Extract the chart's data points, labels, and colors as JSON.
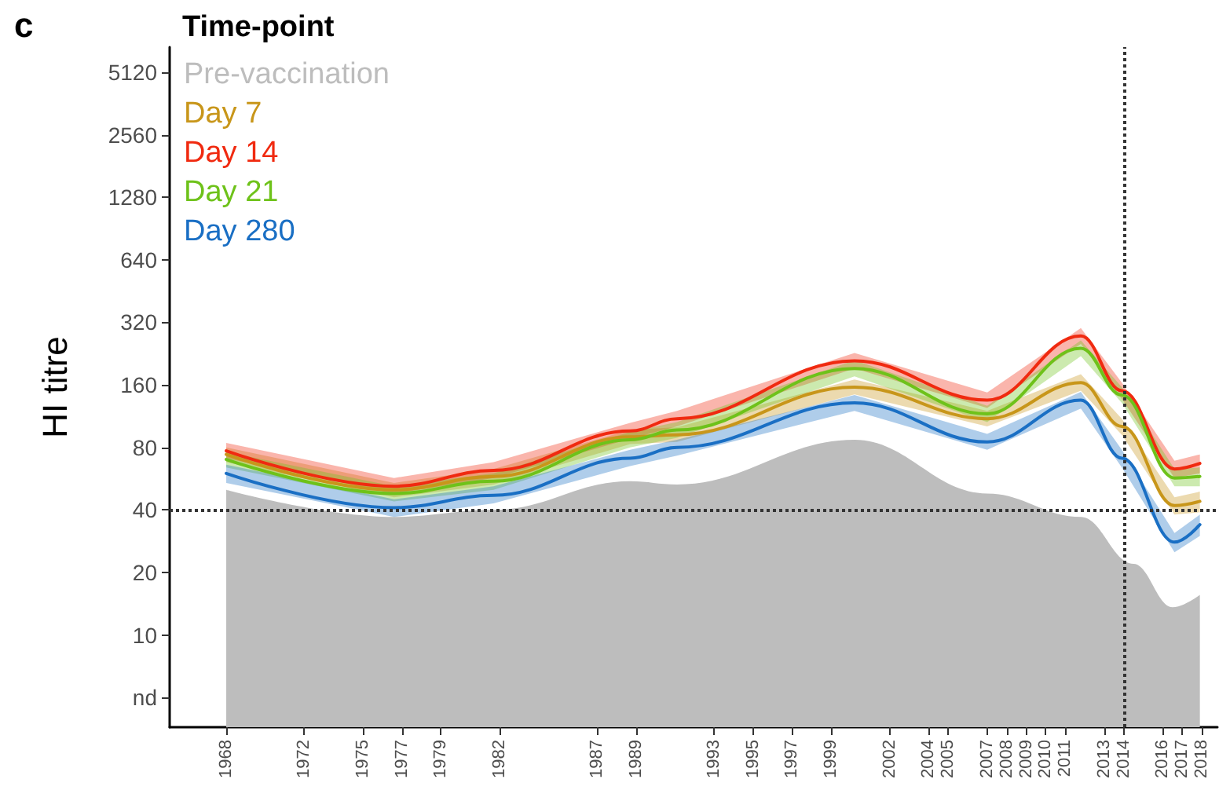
{
  "chart_data": {
    "type": "line",
    "title": "c",
    "ylabel": "HI titre",
    "legend_title": "Time-point",
    "legend": "top left",
    "grid": false,
    "marker": "none",
    "line_style": "solid",
    "log": "y",
    "xlim": [
      1965.1,
      2018.8
    ],
    "xticks": [
      1968,
      1972,
      1975,
      1977,
      1979,
      1982,
      1987,
      1989,
      1993,
      1995,
      1997,
      1999,
      2002,
      2004,
      2005,
      2007,
      2008,
      2009,
      2010,
      2011,
      2013,
      2014,
      2016,
      2017,
      2018
    ],
    "ylim": [
      3.6,
      6760
    ],
    "yticks": [
      {
        "value": 5,
        "label": "nd"
      },
      10,
      20,
      40,
      80,
      160,
      320,
      640,
      1280,
      2560,
      5120
    ],
    "x": [
      1968,
      1976.6,
      1981.7,
      1988.7,
      1991.1,
      2000.2,
      2007,
      2011.8,
      2013.9,
      2016.6,
      2017.9
    ],
    "series": [
      {
        "name": "Pre-vaccination",
        "type": "area",
        "color": "#bdbdbd",
        "x": [
          1968,
          1976.6,
          1981.7,
          1988.7,
          1991.1,
          2000.2,
          2007,
          2011.8,
          2014.5,
          2016.5,
          2017.9
        ],
        "values": [
          50,
          37,
          40,
          55,
          53,
          87,
          48,
          37,
          22,
          13.6,
          15.6
        ]
      },
      {
        "name": "Day 7",
        "color": "#c8961a",
        "values": [
          74,
          50,
          58,
          90,
          92,
          156,
          110,
          164,
          101,
          42,
          44
        ],
        "lower": [
          68,
          46,
          53,
          83,
          85,
          144,
          101,
          150,
          92,
          38,
          39
        ],
        "upper": [
          80,
          54,
          63,
          97,
          100,
          170,
          120,
          180,
          110,
          46,
          49
        ]
      },
      {
        "name": "Day 14",
        "color": "#f02a10",
        "values": [
          77,
          52,
          62,
          96,
          110,
          209,
          135,
          275,
          150,
          63,
          67
        ],
        "lower": [
          71,
          48,
          57,
          88,
          101,
          192,
          124,
          252,
          137,
          57,
          60
        ],
        "upper": [
          84,
          57,
          68,
          105,
          120,
          228,
          147,
          300,
          164,
          69,
          74
        ]
      },
      {
        "name": "Day 21",
        "color": "#6ec21a",
        "values": [
          70,
          48,
          55,
          87,
          97,
          192,
          116,
          240,
          143,
          57,
          58
        ],
        "lower": [
          64,
          44,
          50,
          80,
          89,
          176,
          106,
          220,
          131,
          52,
          52
        ],
        "upper": [
          76,
          52,
          60,
          95,
          106,
          210,
          127,
          262,
          156,
          63,
          64
        ]
      },
      {
        "name": "Day 280",
        "color": "#1a6fc4",
        "values": [
          60,
          41,
          47,
          71,
          80,
          131,
          85,
          135,
          71,
          28,
          34
        ],
        "lower": [
          54,
          37,
          43,
          65,
          73,
          120,
          78,
          123,
          64,
          25,
          30
        ],
        "upper": [
          66,
          45,
          52,
          78,
          87,
          143,
          93,
          148,
          78,
          31,
          38
        ]
      }
    ],
    "ref_lines": [
      {
        "axis": "y",
        "value": 40,
        "line_style": "dotted",
        "color": "#333333"
      },
      {
        "axis": "x",
        "value": 2014,
        "line_style": "dotted",
        "color": "#333333"
      }
    ]
  }
}
